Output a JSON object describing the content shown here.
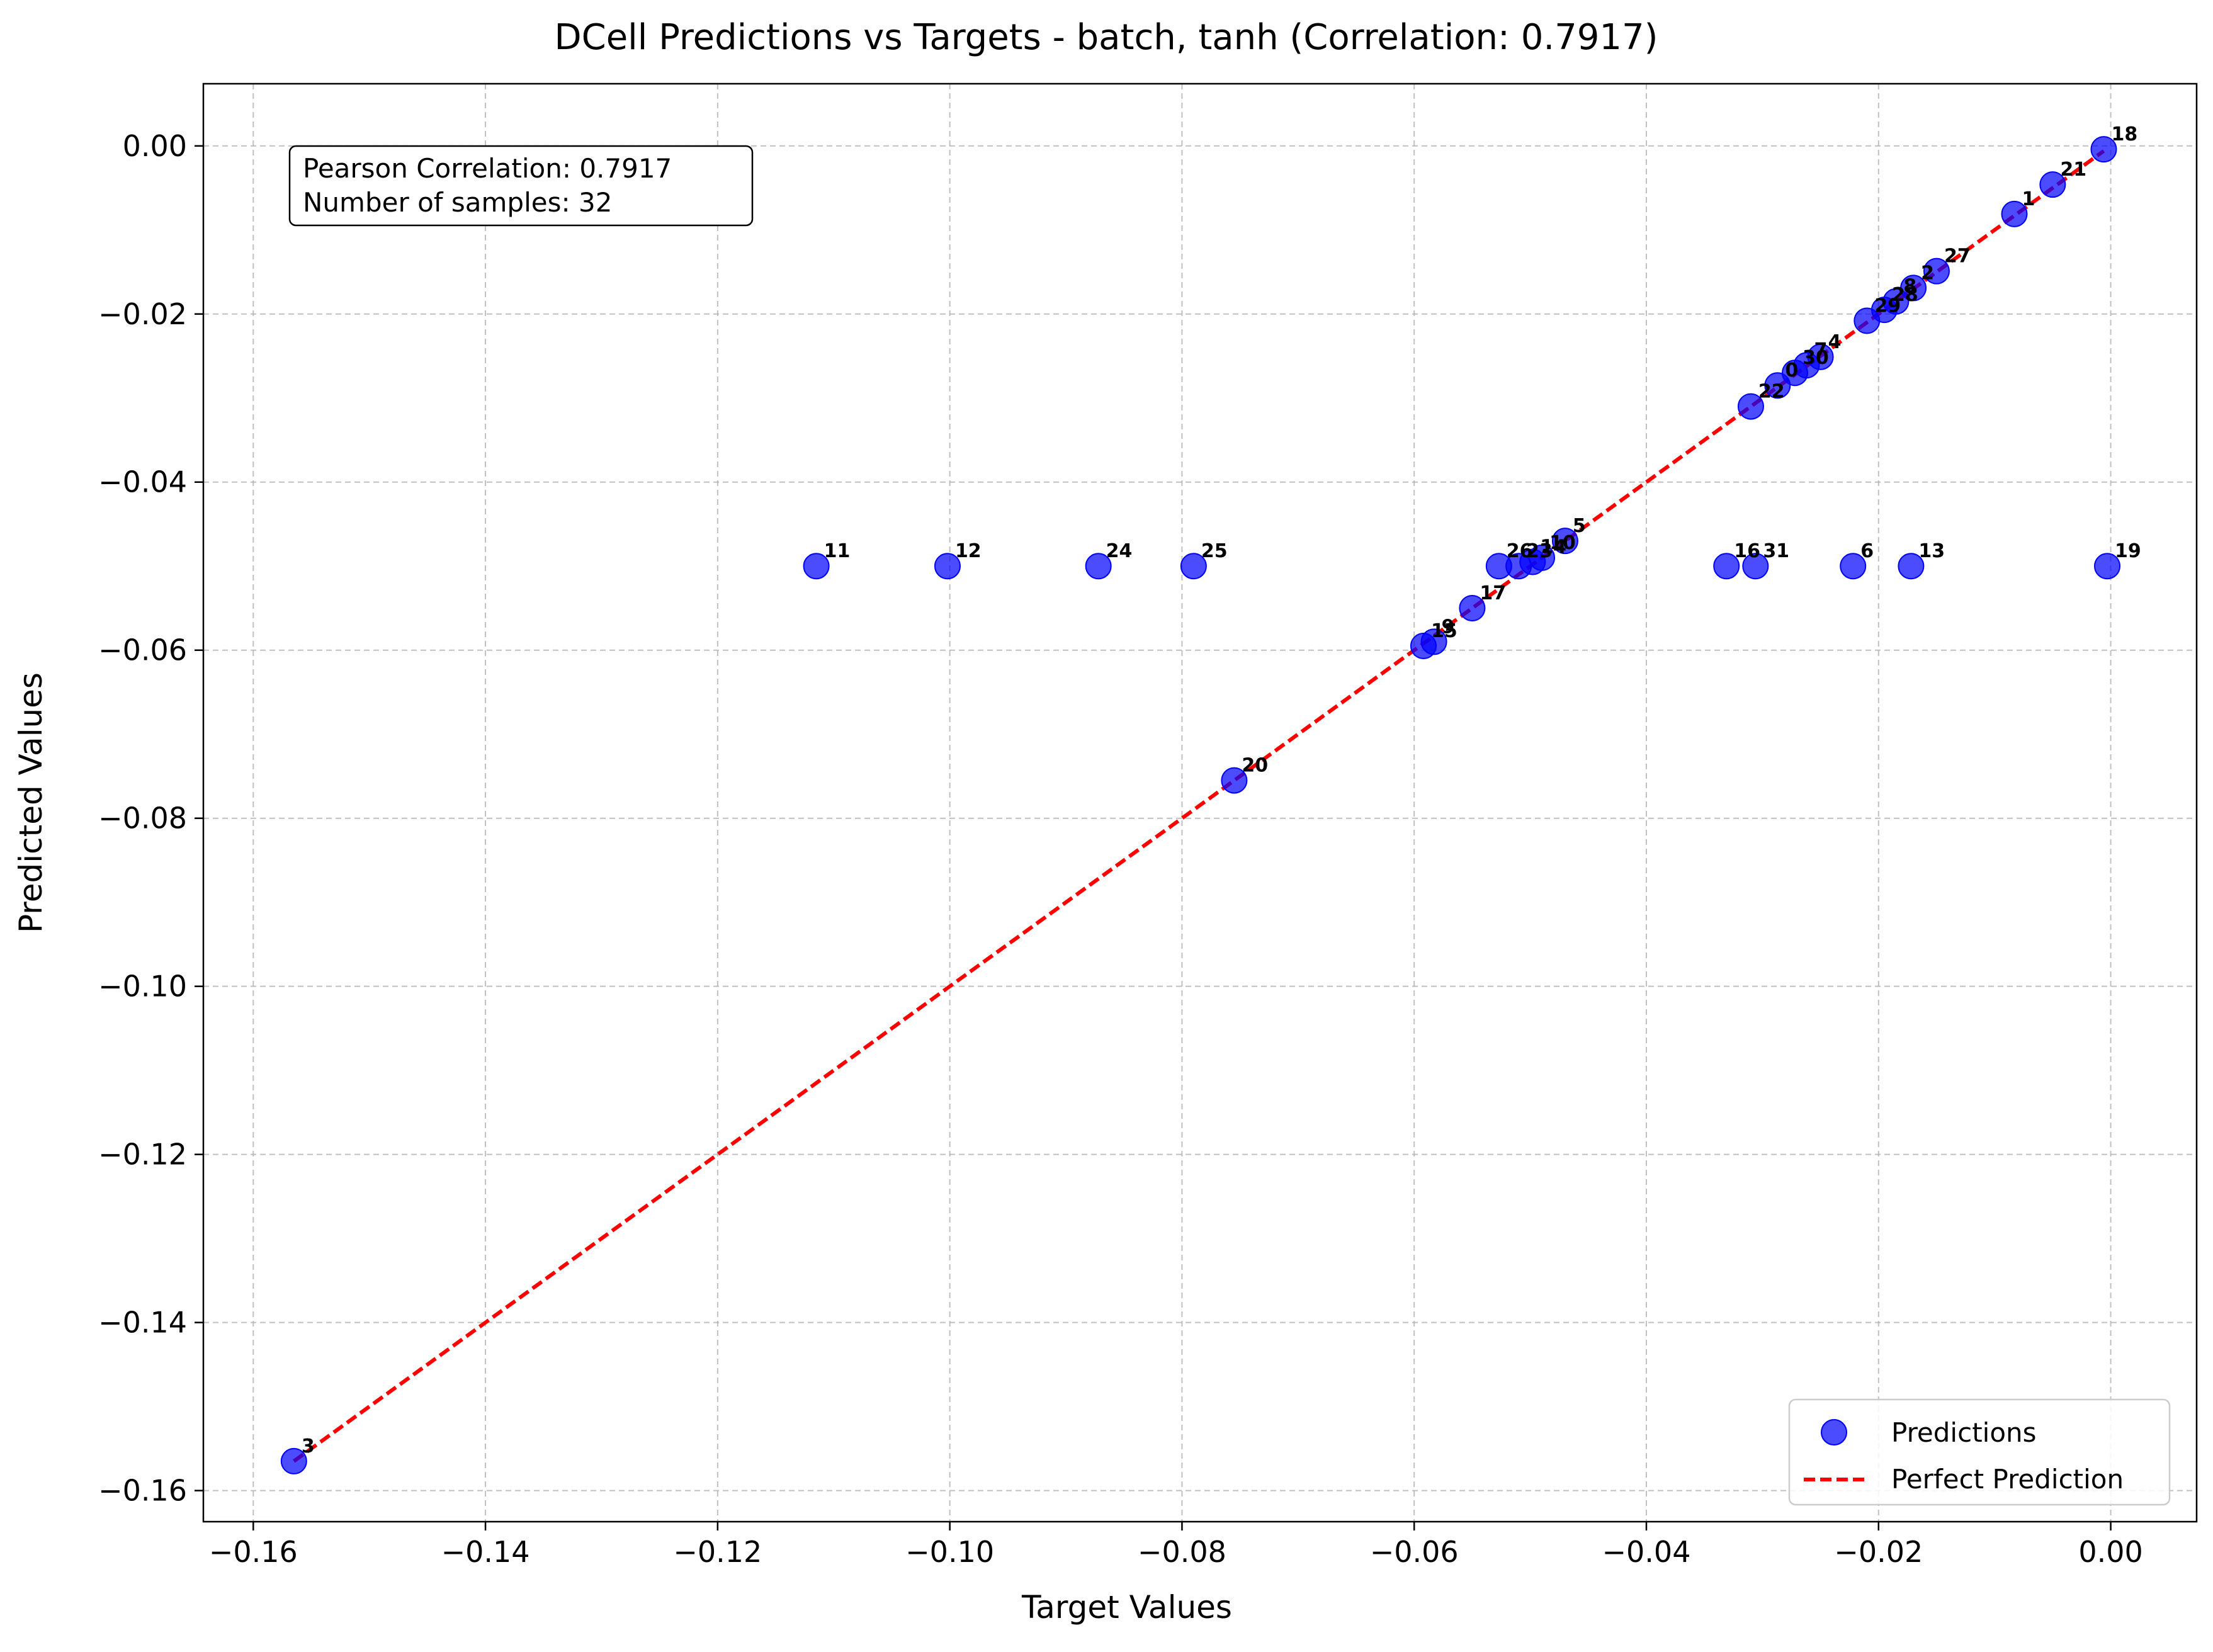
{
  "chart_data": {
    "type": "scatter",
    "title": "DCell Predictions vs Targets - batch, tanh (Correlation: 0.7917)",
    "xlabel": "Target Values",
    "ylabel": "Predicted Values",
    "xlim": [
      -0.1643,
      0.0074
    ],
    "ylim": [
      -0.1637,
      0.0074
    ],
    "x_ticks": [
      -0.16,
      -0.14,
      -0.12,
      -0.1,
      -0.08,
      -0.06,
      -0.04,
      -0.02,
      0.0
    ],
    "y_ticks": [
      0.0,
      -0.02,
      -0.04,
      -0.06,
      -0.08,
      -0.1,
      -0.12,
      -0.14,
      -0.16
    ],
    "x_tick_labels": [
      "−0.16",
      "−0.14",
      "−0.12",
      "−0.10",
      "−0.08",
      "−0.06",
      "−0.04",
      "−0.02",
      "0.00"
    ],
    "y_tick_labels": [
      "0.00",
      "−0.02",
      "−0.04",
      "−0.06",
      "−0.08",
      "−0.10",
      "−0.12",
      "−0.14",
      "−0.16"
    ],
    "grid": true,
    "legend_position": "lower-right",
    "stats_box": {
      "line1": "Pearson Correlation: 0.7917",
      "line2": "Number of samples: 32"
    },
    "series": [
      {
        "name": "Predictions",
        "kind": "scatter",
        "color": "#0000ff",
        "points": [
          {
            "label": "0",
            "x": -0.0287,
            "y": -0.0285
          },
          {
            "label": "1",
            "x": -0.0083,
            "y": -0.0081
          },
          {
            "label": "2",
            "x": -0.017,
            "y": -0.0169
          },
          {
            "label": "3",
            "x": -0.1565,
            "y": -0.1565
          },
          {
            "label": "4",
            "x": -0.025,
            "y": -0.0251
          },
          {
            "label": "5",
            "x": -0.047,
            "y": -0.047
          },
          {
            "label": "6",
            "x": -0.0222,
            "y": -0.05
          },
          {
            "label": "7",
            "x": -0.0262,
            "y": -0.0261
          },
          {
            "label": "8",
            "x": -0.0185,
            "y": -0.0185
          },
          {
            "label": "9",
            "x": -0.0583,
            "y": -0.059
          },
          {
            "label": "10",
            "x": -0.049,
            "y": -0.049
          },
          {
            "label": "11",
            "x": -0.1115,
            "y": -0.05
          },
          {
            "label": "12",
            "x": -0.1002,
            "y": -0.05
          },
          {
            "label": "13",
            "x": -0.0172,
            "y": -0.05
          },
          {
            "label": "14",
            "x": -0.0498,
            "y": -0.0495
          },
          {
            "label": "15",
            "x": -0.0592,
            "y": -0.0595
          },
          {
            "label": "16",
            "x": -0.0331,
            "y": -0.05
          },
          {
            "label": "17",
            "x": -0.055,
            "y": -0.055
          },
          {
            "label": "18",
            "x": -0.0006,
            "y": -0.0004
          },
          {
            "label": "19",
            "x": -0.0003,
            "y": -0.05
          },
          {
            "label": "20",
            "x": -0.0755,
            "y": -0.0755
          },
          {
            "label": "21",
            "x": -0.005,
            "y": -0.0046
          },
          {
            "label": "22",
            "x": -0.031,
            "y": -0.031
          },
          {
            "label": "23",
            "x": -0.051,
            "y": -0.05
          },
          {
            "label": "24",
            "x": -0.0872,
            "y": -0.05
          },
          {
            "label": "25",
            "x": -0.079,
            "y": -0.05
          },
          {
            "label": "26",
            "x": -0.0527,
            "y": -0.05
          },
          {
            "label": "27",
            "x": -0.015,
            "y": -0.0149
          },
          {
            "label": "28",
            "x": -0.0195,
            "y": -0.0195
          },
          {
            "label": "29",
            "x": -0.021,
            "y": -0.0208
          },
          {
            "label": "30",
            "x": -0.0272,
            "y": -0.027
          },
          {
            "label": "31",
            "x": -0.0306,
            "y": -0.05
          }
        ]
      },
      {
        "name": "Perfect Prediction",
        "kind": "line",
        "style": "dashed",
        "color": "#ff0000",
        "x": [
          -0.1565,
          -0.0006
        ],
        "y": [
          -0.1565,
          -0.0006
        ]
      }
    ]
  }
}
